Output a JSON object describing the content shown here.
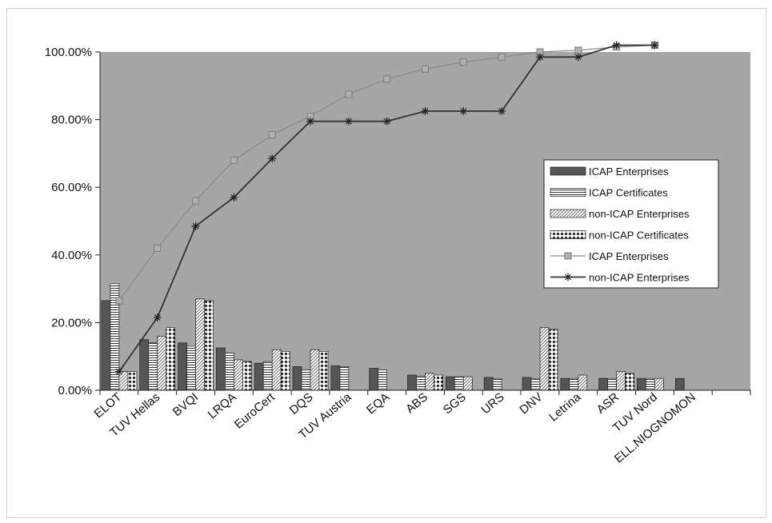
{
  "chart_data": {
    "type": "bar",
    "categories": [
      "ELOT",
      "TUV Hellas",
      "BVQI",
      "LRQA",
      "EuroCert",
      "DQS",
      "TUV Austria",
      "EQA",
      "ABS",
      "SGS",
      "URS",
      "DNV",
      "Letrina",
      "ASR",
      "TUV Nord",
      "ELL.NIOGNOMON",
      ""
    ],
    "yticks": [
      "0.00%",
      "20.00%",
      "40.00%",
      "60.00%",
      "80.00%",
      "100.00%"
    ],
    "ylim": [
      0,
      100
    ],
    "grid": false,
    "legend_position": "right",
    "plot_background": "#a6a6a6",
    "series": [
      {
        "name": "ICAP Enterprises",
        "kind": "bar",
        "pattern": "solid-dark",
        "values": [
          26.5,
          15,
          14,
          12.5,
          8,
          7,
          7.2,
          6.5,
          4.5,
          4,
          3.8,
          3.8,
          3.5,
          3.5,
          3.5,
          3.5,
          0
        ]
      },
      {
        "name": "ICAP Certificates",
        "kind": "bar",
        "pattern": "horizontal-lines",
        "values": [
          31.5,
          14,
          13,
          11,
          8.5,
          6,
          7,
          6,
          4.2,
          4,
          3.5,
          3.5,
          3.5,
          3.5,
          3.5,
          0,
          0
        ]
      },
      {
        "name": "non-ICAP Enterprises",
        "kind": "bar",
        "pattern": "diagonal-lines",
        "values": [
          5.5,
          16,
          27,
          9,
          12,
          12,
          0,
          0,
          5,
          4,
          0,
          18.5,
          4.5,
          5.5,
          3.5,
          0,
          0
        ]
      },
      {
        "name": "non-ICAP Certificates",
        "kind": "bar",
        "pattern": "dotted",
        "values": [
          5.5,
          18.5,
          26.5,
          8.5,
          11.5,
          11.5,
          0,
          0,
          4.5,
          0,
          0,
          18,
          0,
          5,
          0,
          0,
          0
        ]
      },
      {
        "name": "ICAP Enterprises",
        "kind": "line",
        "marker": "square",
        "values": [
          26.5,
          42,
          56,
          68,
          75.5,
          81,
          87.5,
          92,
          95,
          97,
          98.5,
          100,
          100.5,
          101.5,
          102,
          null,
          null
        ]
      },
      {
        "name": "non-ICAP Enterprises",
        "kind": "line",
        "marker": "star",
        "values": [
          5.5,
          21.5,
          48.5,
          57,
          68.5,
          79.5,
          79.5,
          79.5,
          82.5,
          82.5,
          82.5,
          98.5,
          98.5,
          102,
          102,
          null,
          null
        ]
      }
    ]
  }
}
